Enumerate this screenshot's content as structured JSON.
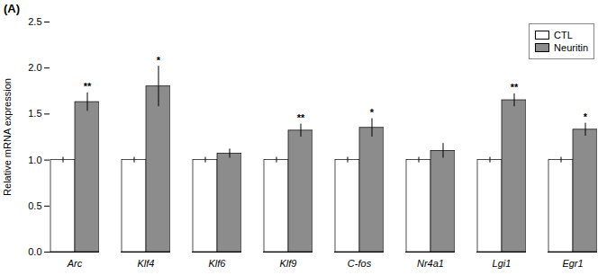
{
  "chart_data": {
    "type": "bar",
    "title": "(A)",
    "ylabel": "Relative mRNA expression",
    "categories": [
      "Arc",
      "Klf4",
      "Klf6",
      "Klf9",
      "C-fos",
      "Nr4a1",
      "Lgi1",
      "Egr1"
    ],
    "series": [
      {
        "name": "CTL",
        "color": "#FFFFFF",
        "values": [
          1.0,
          1.0,
          1.0,
          1.0,
          1.0,
          1.0,
          1.0,
          1.0
        ],
        "errors": [
          0.03,
          0.03,
          0.03,
          0.03,
          0.03,
          0.03,
          0.03,
          0.03
        ]
      },
      {
        "name": "Neuritin",
        "color": "#8C8C8C",
        "values": [
          1.63,
          1.8,
          1.07,
          1.32,
          1.35,
          1.1,
          1.65,
          1.33
        ],
        "errors": [
          0.1,
          0.22,
          0.05,
          0.07,
          0.1,
          0.08,
          0.07,
          0.07
        ]
      }
    ],
    "annotations": [
      {
        "category": "Arc",
        "series": "Neuritin",
        "text": "**"
      },
      {
        "category": "Klf4",
        "series": "Neuritin",
        "text": "*"
      },
      {
        "category": "Klf9",
        "series": "Neuritin",
        "text": "**"
      },
      {
        "category": "C-fos",
        "series": "Neuritin",
        "text": "*"
      },
      {
        "category": "Lgi1",
        "series": "Neuritin",
        "text": "**"
      },
      {
        "category": "Egr1",
        "series": "Neuritin",
        "text": "*"
      }
    ],
    "ylim": [
      0,
      2.5
    ],
    "yticks": [
      {
        "value": 0,
        "label": "0.0"
      },
      0.5,
      {
        "value": 1.0,
        "label": "1.0"
      },
      1.5,
      {
        "value": 2.0,
        "label": "2.0"
      },
      2.5
    ],
    "grid": false,
    "legend": "upper right"
  }
}
